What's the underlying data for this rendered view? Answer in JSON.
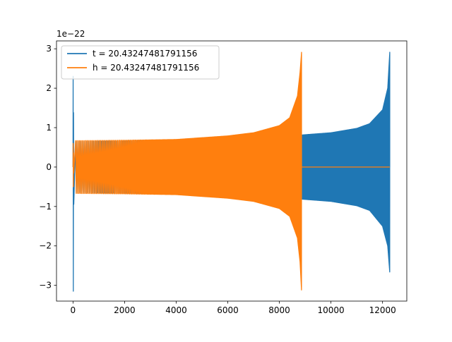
{
  "chart_data": {
    "type": "line",
    "title": "",
    "xlabel": "",
    "ylabel": "",
    "y_scale_label": "1e−22",
    "xlim": [
      -640,
      12940
    ],
    "ylim": [
      -3.4,
      3.2
    ],
    "x_ticks": [
      0,
      2000,
      4000,
      6000,
      8000,
      10000,
      12000
    ],
    "x_tick_labels": [
      "0",
      "2000",
      "4000",
      "6000",
      "8000",
      "10000",
      "12000"
    ],
    "y_ticks": [
      -3,
      -2,
      -1,
      0,
      1,
      2,
      3
    ],
    "y_tick_labels": [
      "−3",
      "−2",
      "−1",
      "0",
      "1",
      "2",
      "3"
    ],
    "grid": false,
    "legend_position": "upper-left",
    "series": [
      {
        "name": "t = 20.43247481791156",
        "color": "#1f77b4",
        "x_range": [
          0,
          12280
        ],
        "start_spike": {
          "max": 2.3,
          "min": -3.15
        },
        "envelope": {
          "x": [
            100,
            2000,
            4000,
            6000,
            8000,
            9000,
            10000,
            11000,
            11500,
            12000,
            12200,
            12280
          ],
          "upper": [
            0.65,
            0.66,
            0.69,
            0.72,
            0.77,
            0.82,
            0.87,
            0.98,
            1.1,
            1.45,
            2.0,
            2.92
          ],
          "lower": [
            -0.65,
            -0.66,
            -0.69,
            -0.72,
            -0.77,
            -0.82,
            -0.87,
            -0.98,
            -1.1,
            -1.5,
            -2.0,
            -2.68
          ]
        }
      },
      {
        "name": "h = 20.43247481791156",
        "color": "#ff7f0e",
        "x_range": [
          0,
          12280
        ],
        "signal_end": 8860,
        "start_spike": {
          "max": 0.6,
          "min": -0.5
        },
        "envelope": {
          "x": [
            100,
            2000,
            4000,
            6000,
            7000,
            8000,
            8400,
            8700,
            8800,
            8860
          ],
          "upper": [
            0.67,
            0.68,
            0.7,
            0.79,
            0.87,
            1.05,
            1.25,
            1.8,
            2.4,
            2.92
          ],
          "lower": [
            -0.67,
            -0.68,
            -0.7,
            -0.79,
            -0.87,
            -1.05,
            -1.25,
            -1.8,
            -2.4,
            -3.15
          ]
        }
      }
    ]
  }
}
